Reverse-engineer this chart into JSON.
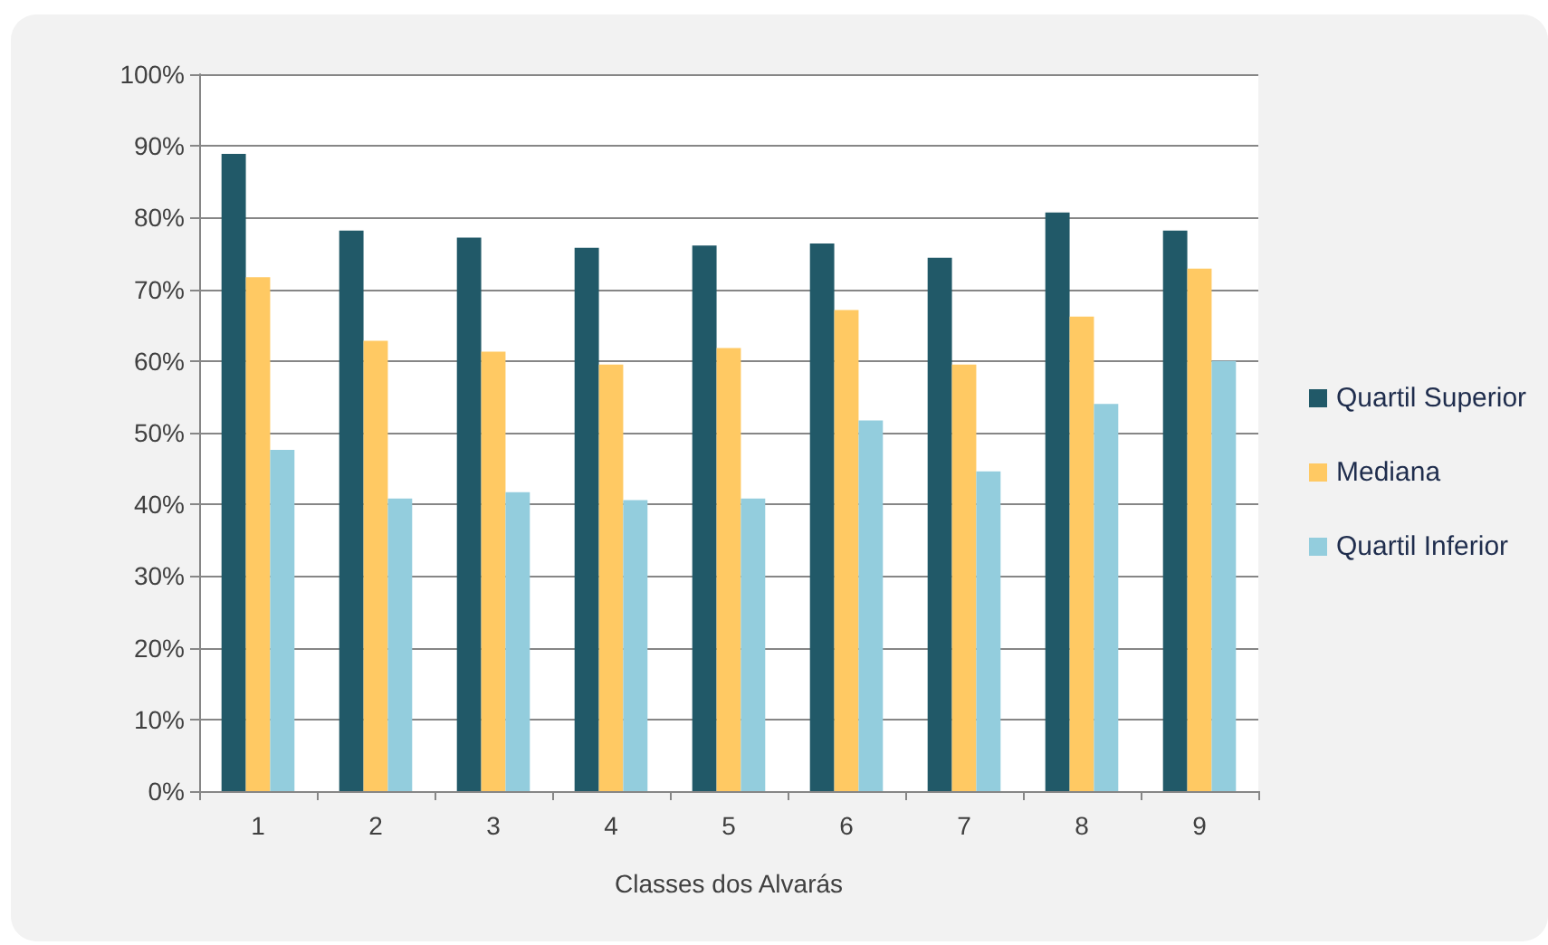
{
  "chart_data": {
    "type": "bar",
    "xlabel": "Classes dos Alvarás",
    "categories": [
      "1",
      "2",
      "3",
      "4",
      "5",
      "6",
      "7",
      "8",
      "9"
    ],
    "series": [
      {
        "name": "Quartil Superior",
        "color": "#215968",
        "values": [
          88.9,
          78.2,
          77.2,
          75.8,
          76.1,
          76.4,
          74.4,
          80.7,
          78.2
        ]
      },
      {
        "name": "Mediana",
        "color": "#ffc963",
        "values": [
          71.7,
          62.8,
          61.3,
          59.5,
          61.8,
          67.1,
          59.5,
          66.2,
          72.9
        ]
      },
      {
        "name": "Quartil Inferior",
        "color": "#93cddd",
        "values": [
          47.6,
          40.8,
          41.7,
          40.6,
          40.8,
          51.7,
          44.6,
          54.0,
          60.0
        ]
      }
    ],
    "ylim": [
      0,
      100
    ],
    "yticks": [
      {
        "value": 0,
        "label": "0%"
      },
      {
        "value": 10,
        "label": "10%"
      },
      {
        "value": 20,
        "label": "20%"
      },
      {
        "value": 30,
        "label": "30%"
      },
      {
        "value": 40,
        "label": "40%"
      },
      {
        "value": 50,
        "label": "50%"
      },
      {
        "value": 60,
        "label": "60%"
      },
      {
        "value": 70,
        "label": "70%"
      },
      {
        "value": 80,
        "label": "80%"
      },
      {
        "value": 90,
        "label": "90%"
      },
      {
        "value": 100,
        "label": "100%"
      }
    ],
    "grid": "y",
    "legend": "right"
  }
}
